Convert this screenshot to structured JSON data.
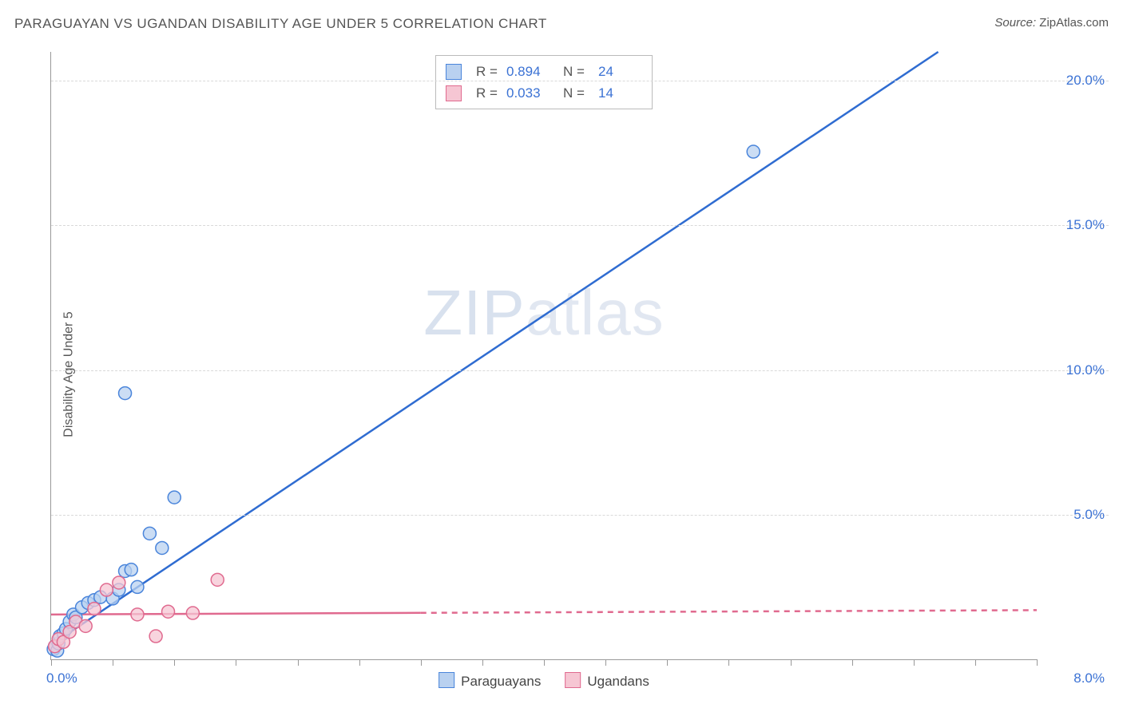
{
  "header": {
    "title": "PARAGUAYAN VS UGANDAN DISABILITY AGE UNDER 5 CORRELATION CHART",
    "source_label": "Source:",
    "source_value": "ZipAtlas.com"
  },
  "chart": {
    "type": "scatter",
    "ylabel": "Disability Age Under 5",
    "background_color": "#ffffff",
    "grid_color": "#d9d9d9",
    "axis_color": "#999999",
    "tick_label_color": "#3b72d4",
    "tick_fontsize": 17,
    "label_fontsize": 16,
    "xlim": [
      0,
      8
    ],
    "ylim": [
      0,
      21
    ],
    "x_tick_positions": [
      0,
      0.5,
      1.0,
      1.5,
      2.0,
      2.5,
      3.0,
      3.5,
      4.0,
      4.5,
      5.0,
      5.5,
      6.0,
      6.5,
      7.0,
      7.5,
      8.0
    ],
    "x_tick_labels": {
      "0": "0.0%",
      "8": "8.0%"
    },
    "y_grid_positions": [
      5,
      10,
      15,
      20
    ],
    "y_tick_labels": {
      "5": "5.0%",
      "10": "10.0%",
      "15": "15.0%",
      "20": "20.0%"
    },
    "watermark": "ZIPatlas",
    "watermark_colors": {
      "zip": "#b9c9e1",
      "atlas": "#c9d4e6"
    },
    "series": [
      {
        "name": "Paraguayans",
        "marker_color_fill": "#b9d1f0",
        "marker_color_stroke": "#4a85db",
        "marker_radius": 8,
        "marker_opacity": 0.75,
        "regression_line_color": "#2f6cd1",
        "regression_line_width": 2.5,
        "regression_dash_after_x": 8.0,
        "regression": {
          "x1": 0.0,
          "y1": 0.5,
          "x2": 7.2,
          "y2": 21.0
        },
        "R": "0.894",
        "N": "24",
        "points": [
          [
            0.02,
            0.35
          ],
          [
            0.03,
            0.45
          ],
          [
            0.05,
            0.3
          ],
          [
            0.06,
            0.55
          ],
          [
            0.07,
            0.8
          ],
          [
            0.1,
            0.9
          ],
          [
            0.12,
            1.05
          ],
          [
            0.15,
            1.3
          ],
          [
            0.18,
            1.55
          ],
          [
            0.2,
            1.45
          ],
          [
            0.25,
            1.8
          ],
          [
            0.3,
            1.95
          ],
          [
            0.35,
            2.05
          ],
          [
            0.4,
            2.15
          ],
          [
            0.5,
            2.1
          ],
          [
            0.55,
            2.4
          ],
          [
            0.6,
            3.05
          ],
          [
            0.65,
            3.1
          ],
          [
            0.7,
            2.5
          ],
          [
            0.8,
            4.35
          ],
          [
            0.9,
            3.85
          ],
          [
            1.0,
            5.6
          ],
          [
            0.6,
            9.2
          ],
          [
            5.7,
            17.55
          ]
        ]
      },
      {
        "name": "Ugandans",
        "marker_color_fill": "#f6c6d3",
        "marker_color_stroke": "#e06a8f",
        "marker_radius": 8,
        "marker_opacity": 0.75,
        "regression_line_color": "#e06a8f",
        "regression_line_width": 2.5,
        "regression_dash_after_x": 3.0,
        "regression": {
          "x1": 0.0,
          "y1": 1.55,
          "x2": 8.0,
          "y2": 1.7
        },
        "R": "0.033",
        "N": "14",
        "points": [
          [
            0.03,
            0.45
          ],
          [
            0.06,
            0.7
          ],
          [
            0.1,
            0.6
          ],
          [
            0.15,
            0.95
          ],
          [
            0.2,
            1.3
          ],
          [
            0.28,
            1.15
          ],
          [
            0.35,
            1.75
          ],
          [
            0.45,
            2.4
          ],
          [
            0.55,
            2.65
          ],
          [
            0.7,
            1.55
          ],
          [
            0.85,
            0.8
          ],
          [
            0.95,
            1.65
          ],
          [
            1.15,
            1.6
          ],
          [
            1.35,
            2.75
          ]
        ]
      }
    ],
    "legend_bottom": [
      {
        "label": "Paraguayans",
        "fill": "#b9d1f0",
        "stroke": "#4a85db"
      },
      {
        "label": "Ugandans",
        "fill": "#f6c6d3",
        "stroke": "#e06a8f"
      }
    ],
    "corr_box": {
      "border_color": "#bbbbbb",
      "R_label": "R =",
      "N_label": "N ="
    }
  }
}
